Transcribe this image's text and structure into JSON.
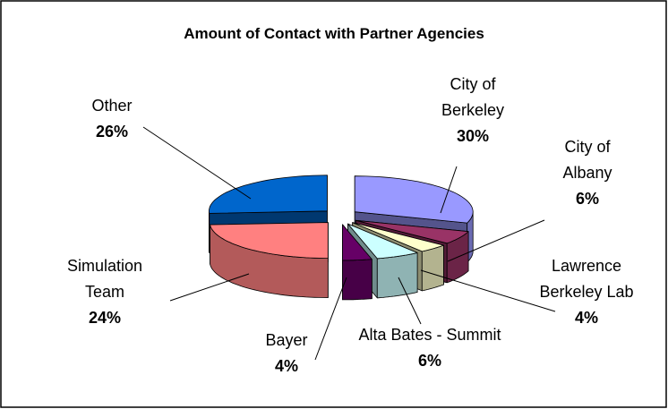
{
  "chart_data": {
    "type": "pie3d",
    "title": "Amount of Contact with Partner Agencies",
    "categories": [
      "City of Berkeley",
      "City of Albany",
      "Lawrence Berkeley Lab",
      "Alta Bates - Summit",
      "Bayer",
      "Simulation Team",
      "Other"
    ],
    "values": [
      30,
      6,
      4,
      6,
      4,
      24,
      26
    ],
    "value_labels": [
      "30%",
      "6%",
      "4%",
      "6%",
      "4%",
      "24%",
      "26%"
    ],
    "colors": [
      "#9999ff",
      "#993366",
      "#ffffcc",
      "#ccffff",
      "#660066",
      "#ff8080",
      "#0066cc"
    ]
  }
}
